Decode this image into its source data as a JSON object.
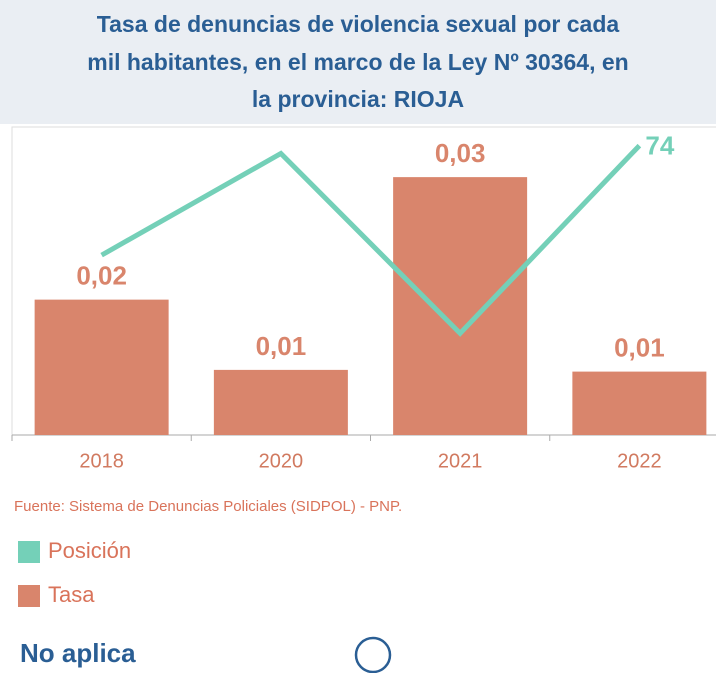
{
  "chart_data": {
    "type": "bar_line",
    "title": [
      "Tasa de denuncias de violencia sexual por cada",
      "mil habitantes, en el marco de la Ley Nº 30364, en",
      "la provincia: RIOJA"
    ],
    "categories": [
      "2018",
      "2020",
      "2021",
      "2022"
    ],
    "series": [
      {
        "name": "Posición",
        "type": "line",
        "axis": "y2",
        "color": "#74d0b8",
        "values": [
          46,
          72,
          26,
          74
        ],
        "value_labels": [
          null,
          null,
          null,
          "74"
        ]
      },
      {
        "name": "Tasa",
        "type": "bar",
        "color": "#d9856c",
        "values": [
          0.0158,
          0.0076,
          0.0301,
          0.0074
        ],
        "value_labels": [
          "0,02",
          "0,01",
          "0,03",
          "0,01"
        ]
      }
    ],
    "ylim": [
      0,
      0.0356
    ],
    "y2lim": [
      0,
      78
    ],
    "source": "Fuente: Sistema de Denuncias Policiales (SIDPOL) - PNP.",
    "note": "No aplica"
  }
}
